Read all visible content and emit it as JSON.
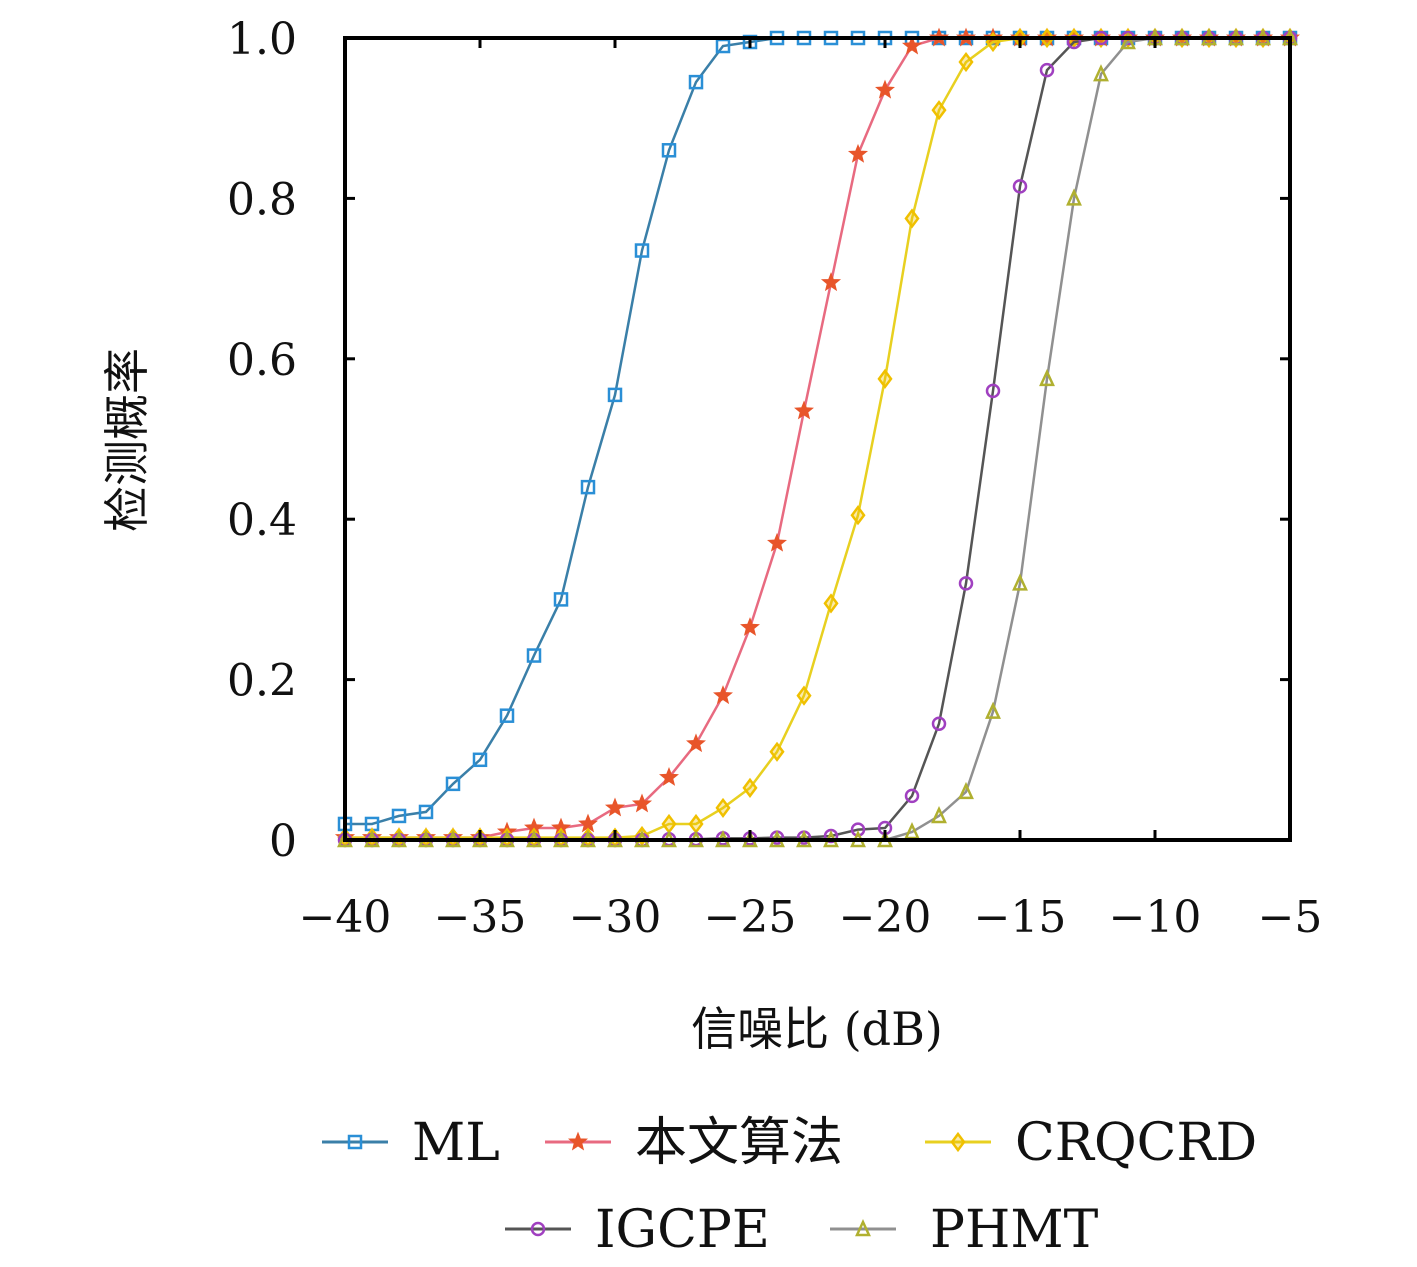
{
  "chart_data": {
    "type": "line",
    "title": "",
    "xlabel": "信噪比 (dB)",
    "ylabel": "检测概率",
    "xlim": [
      -40,
      -5
    ],
    "ylim": [
      0,
      1
    ],
    "xticks": [
      -40,
      -35,
      -30,
      -25,
      -20,
      -15,
      -10,
      -5
    ],
    "xtick_labels": [
      "−40",
      "−35",
      "−30",
      "−25",
      "−20",
      "−15",
      "−10",
      "−5"
    ],
    "yticks": [
      0,
      0.2,
      0.4,
      0.6,
      0.8,
      1.0
    ],
    "ytick_labels": [
      "0",
      "0.2",
      "0.4",
      "0.6",
      "0.8",
      "1.0"
    ],
    "grid": false,
    "legend_position": "bottom",
    "x": [
      -40,
      -39,
      -38,
      -37,
      -36,
      -35,
      -34,
      -33,
      -32,
      -31,
      -30,
      -29,
      -28,
      -27,
      -26,
      -25,
      -24,
      -23,
      -22,
      -21,
      -20,
      -19,
      -18,
      -17,
      -16,
      -15,
      -14,
      -13,
      -12,
      -11,
      -10,
      -9,
      -8,
      -7,
      -6,
      -5
    ],
    "series": [
      {
        "name": "ML",
        "color": "#2a8fd6",
        "line_color": "#3a7fa8",
        "marker": "square",
        "values": [
          0.02,
          0.02,
          0.03,
          0.035,
          0.07,
          0.1,
          0.155,
          0.23,
          0.3,
          0.44,
          0.555,
          0.735,
          0.86,
          0.945,
          0.99,
          0.995,
          1,
          1,
          1,
          1,
          1,
          1,
          1,
          1,
          1,
          1,
          1,
          1,
          1,
          1,
          1,
          1,
          1,
          1,
          1,
          1
        ]
      },
      {
        "name": "本文算法",
        "color": "#e8552a",
        "line_color": "#e86a80",
        "marker": "star",
        "values": [
          0.003,
          0.003,
          0.003,
          0.003,
          0.003,
          0.003,
          0.01,
          0.015,
          0.015,
          0.02,
          0.04,
          0.045,
          0.078,
          0.12,
          0.18,
          0.265,
          0.37,
          0.535,
          0.695,
          0.855,
          0.935,
          0.99,
          1,
          1,
          1,
          1,
          1,
          1,
          1,
          1,
          1,
          1,
          1,
          1,
          1,
          1
        ]
      },
      {
        "name": "CRQCRD",
        "color": "#f0c000",
        "line_color": "#e8d020",
        "marker": "diamond",
        "values": [
          0.003,
          0.003,
          0.003,
          0.003,
          0.003,
          0.003,
          0.003,
          0.003,
          0.003,
          0.003,
          0.003,
          0.005,
          0.02,
          0.02,
          0.04,
          0.065,
          0.11,
          0.18,
          0.295,
          0.405,
          0.575,
          0.775,
          0.91,
          0.97,
          0.995,
          1,
          1,
          1,
          1,
          1,
          1,
          1,
          1,
          1,
          1,
          1
        ]
      },
      {
        "name": "IGCPE",
        "color": "#a040c0",
        "line_color": "#555555",
        "marker": "circle",
        "values": [
          0,
          0,
          0,
          0,
          0,
          0,
          0,
          0,
          0,
          0,
          0,
          0,
          0.001,
          0.001,
          0.002,
          0.002,
          0.003,
          0.003,
          0.005,
          0.013,
          0.015,
          0.055,
          0.145,
          0.32,
          0.56,
          0.815,
          0.96,
          0.995,
          1,
          1,
          1,
          1,
          1,
          1,
          1,
          1
        ]
      },
      {
        "name": "PHMT",
        "color": "#b0b030",
        "line_color": "#909090",
        "marker": "triangle",
        "values": [
          0,
          0,
          0,
          0,
          0,
          0,
          0,
          0,
          0,
          0,
          0,
          0,
          0,
          0,
          0,
          0,
          0,
          0,
          0,
          0,
          0,
          0.01,
          0.03,
          0.06,
          0.16,
          0.32,
          0.575,
          0.8,
          0.955,
          0.995,
          1,
          1,
          1,
          1,
          1,
          1
        ]
      }
    ]
  }
}
